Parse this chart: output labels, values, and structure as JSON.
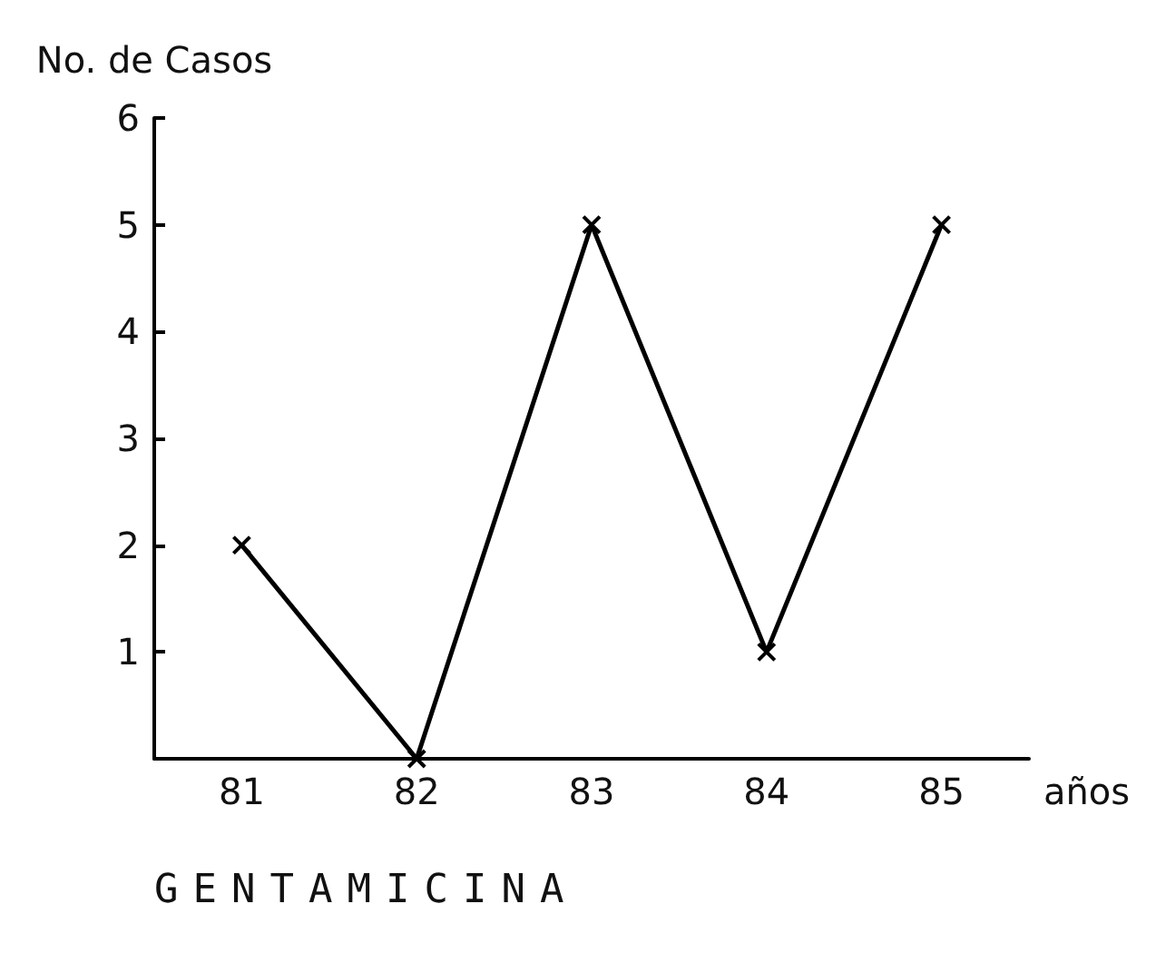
{
  "chart_data": {
    "type": "line",
    "title": "GENTAMICINA",
    "ylabel": "No. de Casos",
    "xlabel": "años",
    "categories": [
      "81",
      "82",
      "83",
      "84",
      "85"
    ],
    "series": [
      {
        "color": "#000000",
        "values": [
          2,
          0,
          5,
          1,
          5
        ]
      }
    ],
    "ylim": [
      0,
      6
    ],
    "yticks": [
      1,
      2,
      3,
      4,
      5,
      6
    ],
    "grid": false,
    "marker": "cross",
    "line_style": "solid"
  }
}
